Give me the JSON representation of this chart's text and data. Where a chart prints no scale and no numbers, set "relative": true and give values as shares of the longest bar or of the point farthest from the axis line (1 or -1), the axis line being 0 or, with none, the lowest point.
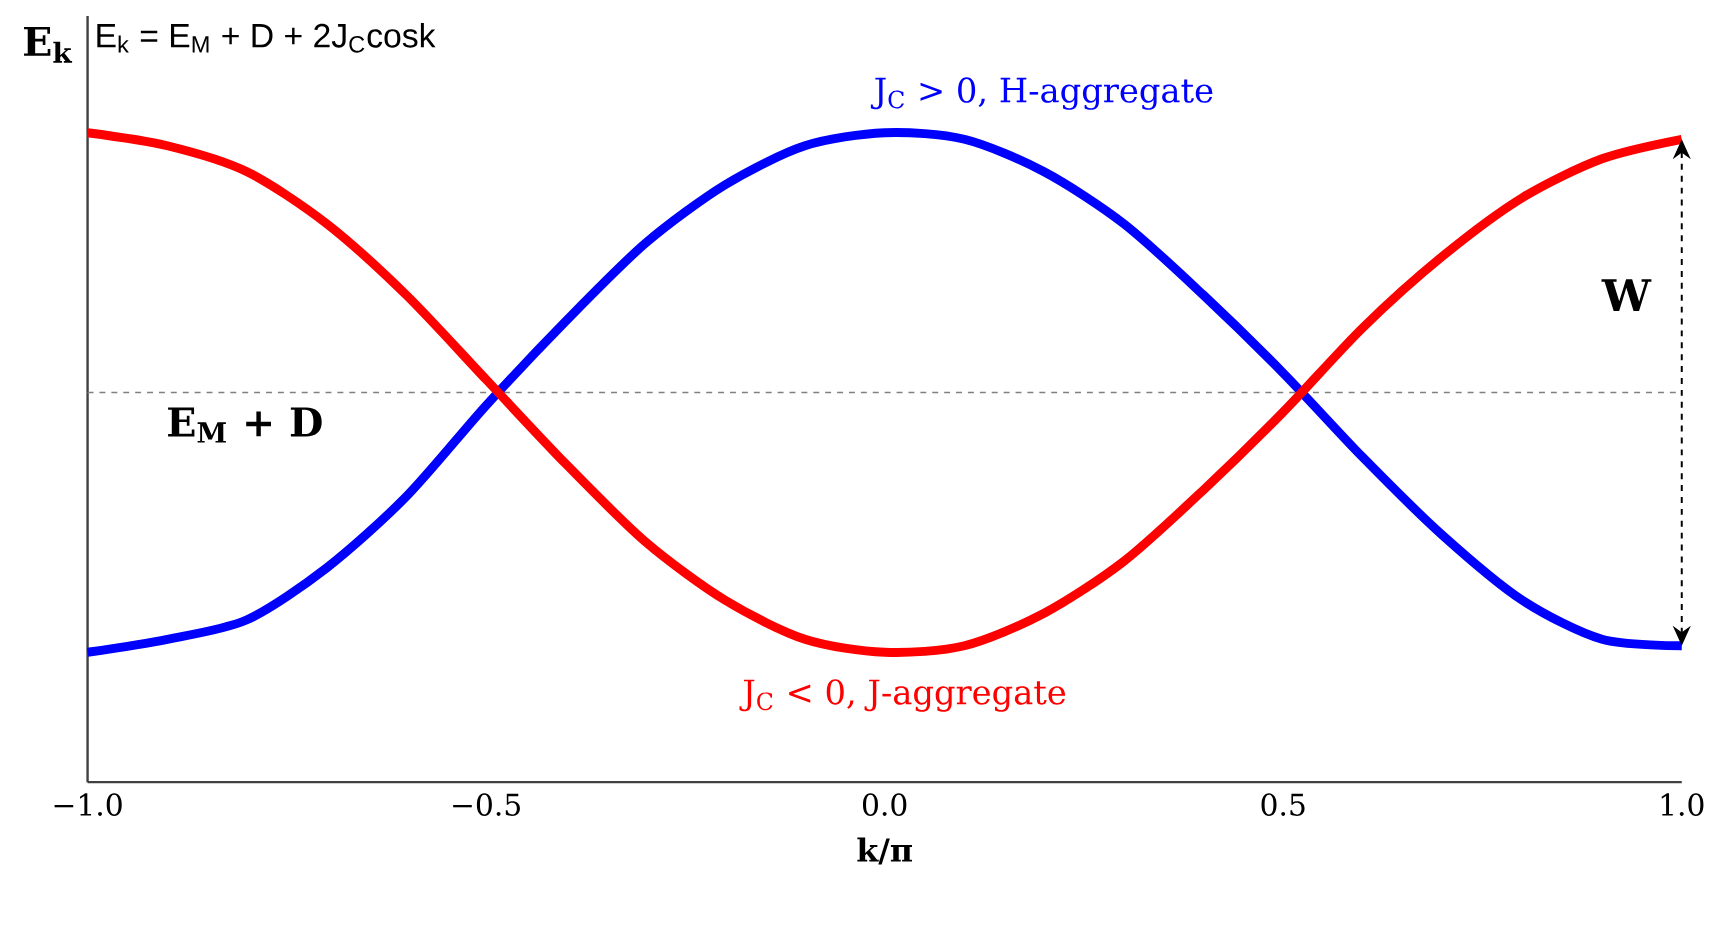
{
  "chart_data": {
    "type": "line",
    "relative": true,
    "xlabel": "k/π",
    "ylabel": "E$_{k}$",
    "x": [
      -1.0,
      -0.9,
      -0.8,
      -0.7,
      -0.6,
      -0.5,
      -0.4,
      -0.3,
      -0.2,
      -0.1,
      0.0,
      0.1,
      0.2,
      0.3,
      0.4,
      0.5,
      0.6,
      0.7,
      0.8,
      0.9,
      1.0
    ],
    "xlim": [
      -1.0,
      1.0
    ],
    "xticks": [
      {
        "value": -1.0,
        "label": "−1.0"
      },
      {
        "value": -0.5,
        "label": "−0.5"
      },
      {
        "value": 0.0,
        "label": "0.0"
      },
      {
        "value": 0.5,
        "label": "0.5"
      },
      {
        "value": 1.0,
        "label": "1.0"
      }
    ],
    "series": [
      {
        "name": "J$_{C}$ > 0, H-aggregate",
        "color": "#0000ff",
        "values": [
          0.2,
          0.22,
          0.25,
          0.33,
          0.44,
          0.58,
          0.71,
          0.83,
          0.92,
          0.98,
          1.0,
          0.99,
          0.94,
          0.86,
          0.75,
          0.63,
          0.5,
          0.38,
          0.28,
          0.22,
          0.21
        ]
      },
      {
        "name": "J$_{C}$ < 0, J-aggregate",
        "color": "#ff0000",
        "values": [
          1.0,
          0.98,
          0.94,
          0.86,
          0.75,
          0.62,
          0.49,
          0.37,
          0.28,
          0.22,
          0.2,
          0.21,
          0.26,
          0.34,
          0.45,
          0.57,
          0.7,
          0.81,
          0.9,
          0.96,
          0.99
        ]
      }
    ],
    "ref_lines": [
      {
        "axis": "y",
        "value": 0.6,
        "label": "E$_{M}$ + D",
        "color": "#808080",
        "line_style": "dashed"
      }
    ],
    "annotations": [
      "E$_{k}$ = E$_{M}$ + D + 2J$_{C}$cosk",
      "W"
    ],
    "grid": false,
    "marker": "none",
    "line_style": "solid"
  }
}
